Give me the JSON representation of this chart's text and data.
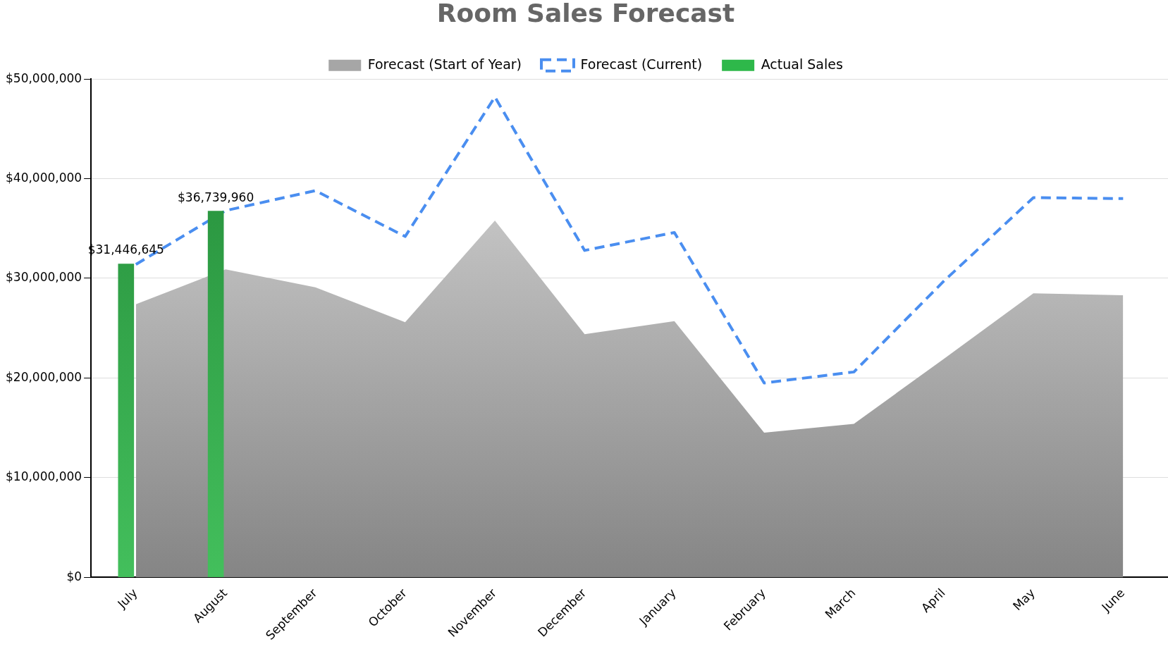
{
  "chart_data": {
    "type": "area",
    "title": "Room Sales Forecast",
    "categories": [
      "July",
      "August",
      "September",
      "October",
      "November",
      "December",
      "January",
      "February",
      "March",
      "April",
      "May",
      "June"
    ],
    "series": [
      {
        "name": "Forecast (Start of Year)",
        "color": "#a6a6a6",
        "values": [
          27400000,
          30900000,
          29100000,
          25600000,
          35800000,
          24400000,
          25700000,
          14500000,
          15400000,
          21900000,
          28500000,
          28300000
        ]
      },
      {
        "name": "Forecast (Current)",
        "type": "line",
        "line_style": "dashed",
        "color": "#4a8ef0",
        "values": [
          31400000,
          36800000,
          38800000,
          34200000,
          48200000,
          32800000,
          34600000,
          19500000,
          20600000,
          29700000,
          38100000,
          38000000
        ]
      },
      {
        "name": "Actual Sales",
        "type": "bar",
        "color": "#2eb84a",
        "values": [
          31446645,
          36739960,
          null,
          null,
          null,
          null,
          null,
          null,
          null,
          null,
          null,
          null
        ],
        "value_labels": [
          "$31,446,645",
          "$36,739,960",
          null,
          null,
          null,
          null,
          null,
          null,
          null,
          null,
          null,
          null
        ]
      }
    ],
    "ylim": [
      0,
      50000000
    ],
    "yticks": [
      {
        "value": 0,
        "label": "$0"
      },
      {
        "value": 10000000,
        "label": "$10,000,000"
      },
      {
        "value": 20000000,
        "label": "$20,000,000"
      },
      {
        "value": 30000000,
        "label": "$30,000,000"
      },
      {
        "value": 40000000,
        "label": "$40,000,000"
      },
      {
        "value": 50000000,
        "label": "$50,000,000"
      }
    ],
    "grid": "y",
    "legend": "top"
  }
}
